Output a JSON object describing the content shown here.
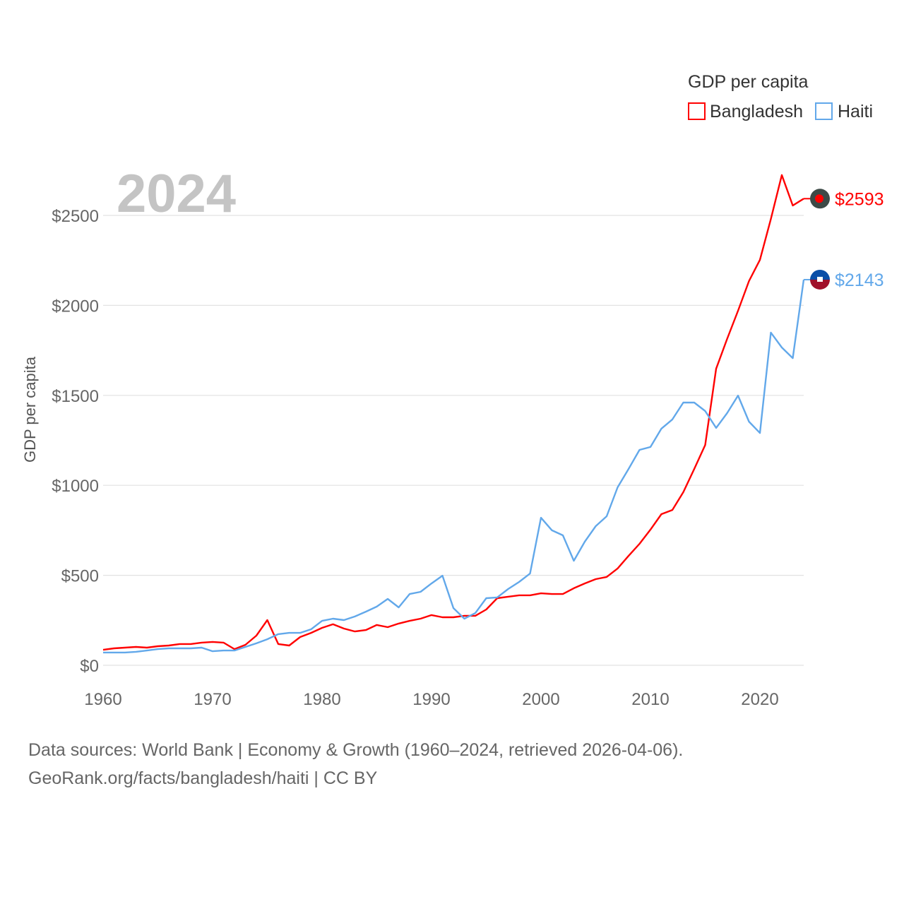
{
  "chart_data": {
    "type": "line",
    "title": "GDP per capita",
    "ylabel": "GDP per capita",
    "xlabel": "",
    "current_year": "2024",
    "xlim": [
      1960,
      2024
    ],
    "ylim": [
      0,
      2800
    ],
    "x_ticks": [
      1960,
      1970,
      1980,
      1990,
      2000,
      2010,
      2020
    ],
    "y_ticks": [
      0,
      500,
      1000,
      1500,
      2000,
      2500
    ],
    "y_tick_labels": [
      "$0",
      "$500",
      "$1000",
      "$1500",
      "$2000",
      "$2500"
    ],
    "grid": true,
    "legend_position": "top-right",
    "x": [
      1960,
      1961,
      1962,
      1963,
      1964,
      1965,
      1966,
      1967,
      1968,
      1969,
      1970,
      1971,
      1972,
      1973,
      1974,
      1975,
      1976,
      1977,
      1978,
      1979,
      1980,
      1981,
      1982,
      1983,
      1984,
      1985,
      1986,
      1987,
      1988,
      1989,
      1990,
      1991,
      1992,
      1993,
      1994,
      1995,
      1996,
      1997,
      1998,
      1999,
      2000,
      2001,
      2002,
      2003,
      2004,
      2005,
      2006,
      2007,
      2008,
      2009,
      2010,
      2011,
      2012,
      2013,
      2014,
      2015,
      2016,
      2017,
      2018,
      2019,
      2020,
      2021,
      2022,
      2023,
      2024
    ],
    "series": [
      {
        "name": "Bangladesh",
        "color": "#ff0000",
        "end_label": "$2593",
        "values": [
          86,
          94,
          98,
          102,
          98,
          106,
          110,
          118,
          118,
          126,
          130,
          126,
          90,
          114,
          165,
          251,
          118,
          110,
          157,
          180,
          208,
          228,
          204,
          188,
          196,
          224,
          212,
          232,
          247,
          259,
          279,
          267,
          267,
          275,
          275,
          310,
          373,
          381,
          389,
          389,
          400,
          396,
          396,
          428,
          455,
          479,
          491,
          538,
          608,
          675,
          754,
          840,
          863,
          962,
          1091,
          1224,
          1648,
          1813,
          1970,
          2135,
          2253,
          2480,
          2724,
          2555,
          2593
        ]
      },
      {
        "name": "Haiti",
        "color": "#62a8ea",
        "end_label": "$2143",
        "values": [
          71,
          71,
          71,
          75,
          82,
          90,
          94,
          94,
          94,
          98,
          78,
          82,
          82,
          102,
          122,
          145,
          173,
          180,
          180,
          200,
          247,
          259,
          251,
          271,
          298,
          326,
          369,
          322,
          396,
          408,
          455,
          498,
          318,
          259,
          290,
          373,
          377,
          424,
          463,
          510,
          820,
          750,
          722,
          581,
          687,
          773,
          828,
          989,
          1091,
          1197,
          1213,
          1315,
          1366,
          1460,
          1460,
          1413,
          1319,
          1401,
          1499,
          1354,
          1291,
          1849,
          1766,
          1707,
          2143
        ]
      }
    ]
  },
  "footer": {
    "line1": "Data sources: World Bank | Economy & Growth (1960–2024, retrieved 2026-04-06).",
    "line2": "GeoRank.org/facts/bangladesh/haiti | CC BY"
  }
}
